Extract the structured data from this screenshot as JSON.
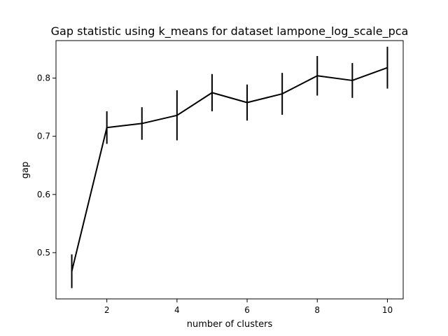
{
  "chart_data": {
    "type": "line",
    "title": "Gap statistic using k_means for dataset lampone_log_scale_pca",
    "xlabel": "number of clusters",
    "ylabel": "gap",
    "xlim": [
      0.55,
      10.45
    ],
    "ylim": [
      0.4205,
      0.8645
    ],
    "xticks": [
      2,
      4,
      6,
      8,
      10
    ],
    "yticks": [
      0.5,
      0.6,
      0.7,
      0.8
    ],
    "ytick_labels": [
      "0.5",
      "0.6",
      "0.7",
      "0.8"
    ],
    "grid": false,
    "line_color": "#000000",
    "series": [
      {
        "x": [
          1,
          2,
          3,
          4,
          5,
          6,
          7,
          8,
          9,
          10
        ],
        "y": [
          0.468,
          0.715,
          0.722,
          0.736,
          0.775,
          0.758,
          0.773,
          0.804,
          0.796,
          0.818
        ],
        "err": [
          0.029,
          0.028,
          0.028,
          0.043,
          0.032,
          0.031,
          0.036,
          0.034,
          0.03,
          0.036
        ]
      }
    ]
  }
}
